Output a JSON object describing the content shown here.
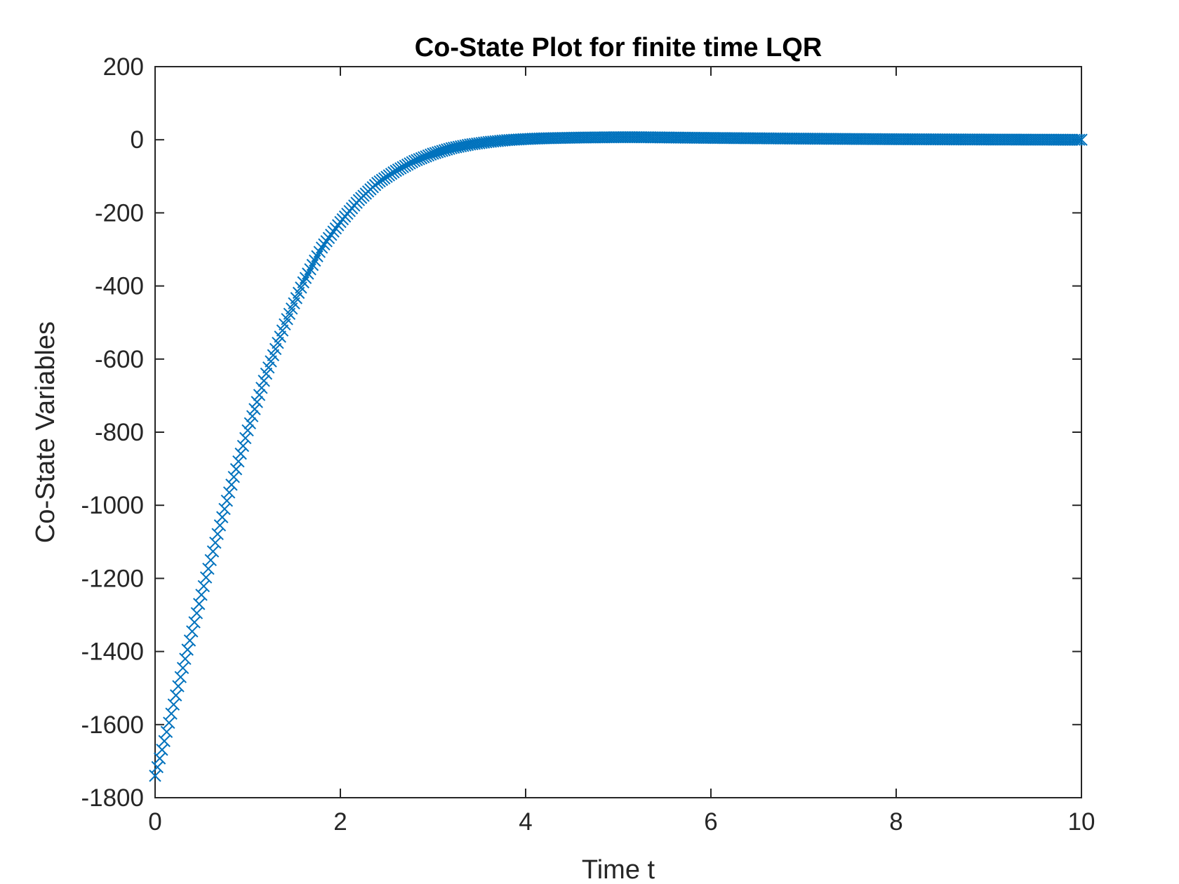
{
  "chart_data": {
    "type": "scatter",
    "title": "Co-State Plot for finite time LQR",
    "xlabel": "Time t",
    "ylabel": "Co-State Variables",
    "xlim": [
      0,
      10
    ],
    "ylim": [
      -1800,
      200
    ],
    "xticks": [
      "0",
      "2",
      "4",
      "6",
      "8",
      "10"
    ],
    "yticks": [
      "200",
      "0",
      "-200",
      "-400",
      "-600",
      "-800",
      "-1000",
      "-1200",
      "-1400",
      "-1600",
      "-1800"
    ],
    "grid": false,
    "legend": "none",
    "marker": "x",
    "series_color": "#0072BD",
    "series": [
      {
        "x": [
          0,
          0.1,
          0.2,
          0.3,
          0.4,
          0.5,
          0.6,
          0.7,
          0.8,
          0.9,
          1.0,
          1.2,
          1.4,
          1.6,
          1.8,
          2.0,
          2.2,
          2.4,
          2.6,
          2.8,
          3.0,
          3.2,
          3.4,
          3.6,
          3.8,
          4.0,
          4.2,
          4.4,
          4.6,
          4.8,
          5.0,
          5.2,
          5.4,
          5.6,
          5.8,
          6.0,
          6.5,
          7.0,
          7.5,
          8.0,
          8.5,
          9.0,
          9.5,
          10.0
        ],
        "y": [
          -1740,
          -1645,
          -1545,
          -1445,
          -1345,
          -1245,
          -1150,
          -1055,
          -965,
          -880,
          -795,
          -640,
          -505,
          -390,
          -295,
          -225,
          -165,
          -118,
          -85,
          -58,
          -38,
          -23,
          -13,
          -6,
          -1,
          2,
          4,
          5,
          6,
          6.5,
          7,
          7,
          6.5,
          6,
          5.5,
          5,
          4,
          3,
          2.2,
          1.5,
          1,
          0.6,
          0.3,
          0
        ]
      }
    ]
  }
}
